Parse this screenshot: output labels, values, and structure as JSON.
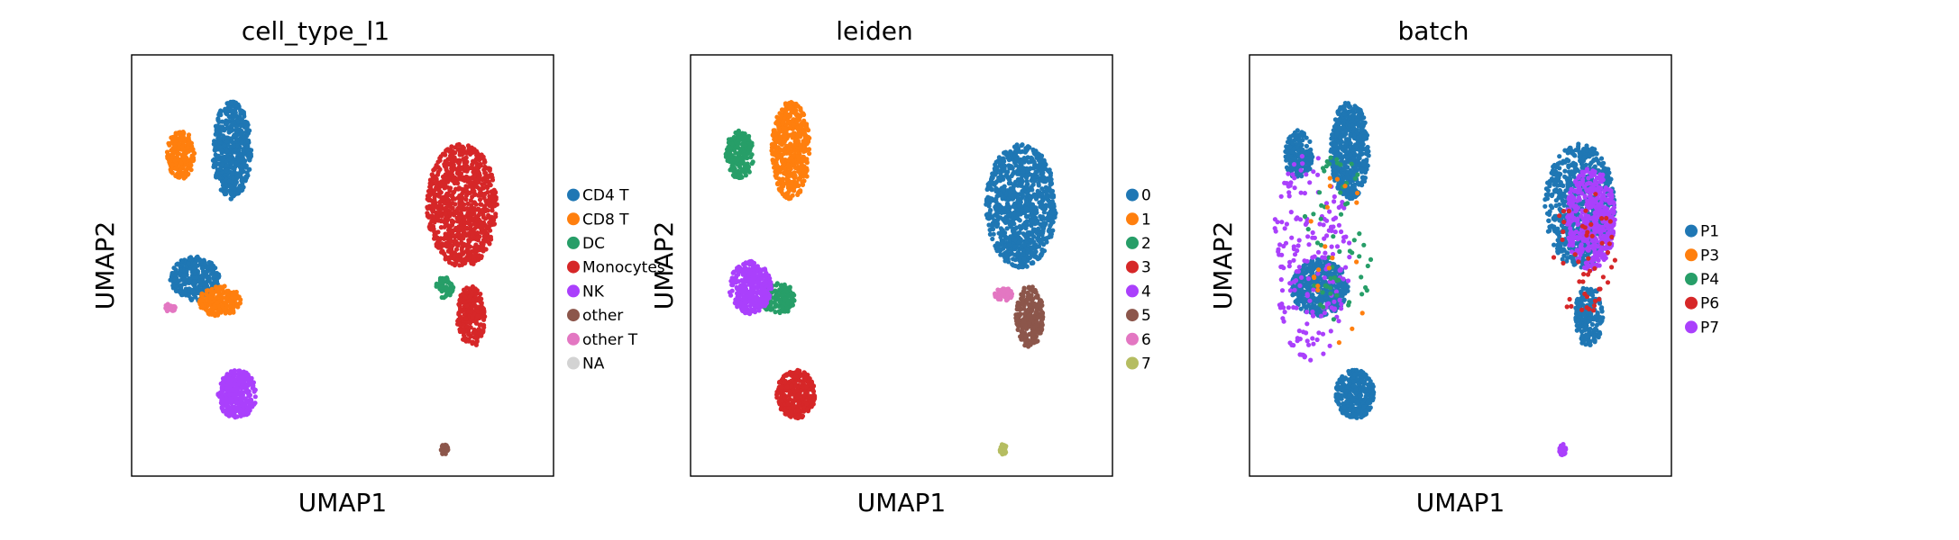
{
  "chart_data": [
    {
      "type": "scatter",
      "title": "cell_type_l1",
      "xlabel": "UMAP1",
      "ylabel": "UMAP2",
      "legend_position": "right",
      "legend": [
        {
          "label": "CD4 T",
          "color": "#1f77b4"
        },
        {
          "label": "CD8 T",
          "color": "#ff7f0e"
        },
        {
          "label": "DC",
          "color": "#279e68"
        },
        {
          "label": "Monocytes",
          "color": "#d62728"
        },
        {
          "label": "NK",
          "color": "#aa40fc"
        },
        {
          "label": "other",
          "color": "#8c564b"
        },
        {
          "label": "other T",
          "color": "#e377c2"
        },
        {
          "label": "NA",
          "color": "#d3d3d3"
        }
      ],
      "clusters": [
        {
          "label": "CD4 T",
          "color": "#1f77b4",
          "cx": -6.3,
          "cy": 7.7,
          "rx": 1.1,
          "ry": 2.2,
          "n": 520
        },
        {
          "label": "CD4 T",
          "color": "#1f77b4",
          "cx": -8.4,
          "cy": 1.9,
          "rx": 1.4,
          "ry": 1.0,
          "n": 300
        },
        {
          "label": "CD8 T",
          "color": "#ff7f0e",
          "cx": -9.2,
          "cy": 7.5,
          "rx": 0.8,
          "ry": 1.1,
          "n": 200
        },
        {
          "label": "CD8 T",
          "color": "#ff7f0e",
          "cx": -7.0,
          "cy": 0.9,
          "rx": 1.2,
          "ry": 0.7,
          "n": 180
        },
        {
          "label": "NK",
          "color": "#aa40fc",
          "cx": -6.0,
          "cy": -3.3,
          "rx": 1.1,
          "ry": 1.1,
          "n": 320
        },
        {
          "label": "Monocytes",
          "color": "#d62728",
          "cx": 6.8,
          "cy": 5.2,
          "rx": 2.0,
          "ry": 2.8,
          "n": 900
        },
        {
          "label": "Monocytes",
          "color": "#d62728",
          "cx": 7.3,
          "cy": 0.2,
          "rx": 0.8,
          "ry": 1.4,
          "n": 240
        },
        {
          "label": "DC",
          "color": "#279e68",
          "cx": 5.8,
          "cy": 1.5,
          "rx": 0.5,
          "ry": 0.5,
          "n": 60
        },
        {
          "label": "other T",
          "color": "#e377c2",
          "cx": -9.8,
          "cy": 0.6,
          "rx": 0.3,
          "ry": 0.2,
          "n": 30
        },
        {
          "label": "other",
          "color": "#8c564b",
          "cx": 5.8,
          "cy": -5.8,
          "rx": 0.2,
          "ry": 0.25,
          "n": 30
        }
      ]
    },
    {
      "type": "scatter",
      "title": "leiden",
      "xlabel": "UMAP1",
      "ylabel": "UMAP2",
      "legend_position": "right",
      "legend": [
        {
          "label": "0",
          "color": "#1f77b4"
        },
        {
          "label": "1",
          "color": "#ff7f0e"
        },
        {
          "label": "2",
          "color": "#279e68"
        },
        {
          "label": "3",
          "color": "#d62728"
        },
        {
          "label": "4",
          "color": "#aa40fc"
        },
        {
          "label": "5",
          "color": "#8c564b"
        },
        {
          "label": "6",
          "color": "#e377c2"
        },
        {
          "label": "7",
          "color": "#b5bd61"
        }
      ],
      "clusters": [
        {
          "label": "0",
          "color": "#1f77b4",
          "cx": 6.8,
          "cy": 5.2,
          "rx": 2.0,
          "ry": 2.8,
          "n": 900
        },
        {
          "label": "5",
          "color": "#8c564b",
          "cx": 7.3,
          "cy": 0.2,
          "rx": 0.8,
          "ry": 1.4,
          "n": 240
        },
        {
          "label": "1",
          "color": "#ff7f0e",
          "cx": -6.3,
          "cy": 7.7,
          "rx": 1.1,
          "ry": 2.2,
          "n": 520
        },
        {
          "label": "2",
          "color": "#279e68",
          "cx": -9.2,
          "cy": 7.5,
          "rx": 0.8,
          "ry": 1.1,
          "n": 200
        },
        {
          "label": "2",
          "color": "#279e68",
          "cx": -7.0,
          "cy": 1.0,
          "rx": 1.0,
          "ry": 0.7,
          "n": 160
        },
        {
          "label": "4",
          "color": "#aa40fc",
          "cx": -8.6,
          "cy": 1.5,
          "rx": 1.2,
          "ry": 1.2,
          "n": 320
        },
        {
          "label": "3",
          "color": "#d62728",
          "cx": -6.0,
          "cy": -3.3,
          "rx": 1.1,
          "ry": 1.1,
          "n": 320
        },
        {
          "label": "6",
          "color": "#e377c2",
          "cx": 5.8,
          "cy": 1.2,
          "rx": 0.5,
          "ry": 0.3,
          "n": 60
        },
        {
          "label": "7",
          "color": "#b5bd61",
          "cx": 5.8,
          "cy": -5.8,
          "rx": 0.2,
          "ry": 0.25,
          "n": 30
        }
      ]
    },
    {
      "type": "scatter",
      "title": "batch",
      "xlabel": "UMAP1",
      "ylabel": "UMAP2",
      "legend_position": "right",
      "legend": [
        {
          "label": "P1",
          "color": "#1f77b4"
        },
        {
          "label": "P3",
          "color": "#ff7f0e"
        },
        {
          "label": "P4",
          "color": "#279e68"
        },
        {
          "label": "P6",
          "color": "#d62728"
        },
        {
          "label": "P7",
          "color": "#aa40fc"
        }
      ],
      "clusters": [
        {
          "label": "P1",
          "color": "#1f77b4",
          "cx": -6.3,
          "cy": 7.7,
          "rx": 1.1,
          "ry": 2.2,
          "n": 520
        },
        {
          "label": "P1",
          "color": "#1f77b4",
          "cx": -9.2,
          "cy": 7.5,
          "rx": 0.8,
          "ry": 1.1,
          "n": 200
        },
        {
          "label": "P1",
          "color": "#1f77b4",
          "cx": -8.0,
          "cy": 1.5,
          "rx": 1.6,
          "ry": 1.3,
          "n": 480
        },
        {
          "label": "P1",
          "color": "#1f77b4",
          "cx": -6.0,
          "cy": -3.3,
          "rx": 1.1,
          "ry": 1.1,
          "n": 320
        },
        {
          "label": "P1",
          "color": "#1f77b4",
          "cx": 6.8,
          "cy": 5.2,
          "rx": 2.0,
          "ry": 2.8,
          "n": 700
        },
        {
          "label": "P1",
          "color": "#1f77b4",
          "cx": 7.3,
          "cy": 0.2,
          "rx": 0.8,
          "ry": 1.4,
          "n": 200
        },
        {
          "label": "P7",
          "color": "#aa40fc",
          "cx": 7.4,
          "cy": 4.6,
          "rx": 1.4,
          "ry": 2.3,
          "n": 420
        },
        {
          "label": "P7",
          "color": "#aa40fc",
          "cx": -8.5,
          "cy": 3.0,
          "rx": 2.2,
          "ry": 4.8,
          "n": 200
        },
        {
          "label": "P7",
          "color": "#aa40fc",
          "cx": 5.8,
          "cy": -5.8,
          "rx": 0.2,
          "ry": 0.25,
          "n": 30
        },
        {
          "label": "P4",
          "color": "#279e68",
          "cx": -7.0,
          "cy": 3.5,
          "rx": 2.0,
          "ry": 4.0,
          "n": 60
        },
        {
          "label": "P6",
          "color": "#d62728",
          "cx": 7.0,
          "cy": 3.0,
          "rx": 1.8,
          "ry": 3.0,
          "n": 50
        },
        {
          "label": "P3",
          "color": "#ff7f0e",
          "cx": -7.0,
          "cy": 3.0,
          "rx": 2.0,
          "ry": 4.0,
          "n": 20
        }
      ]
    }
  ]
}
